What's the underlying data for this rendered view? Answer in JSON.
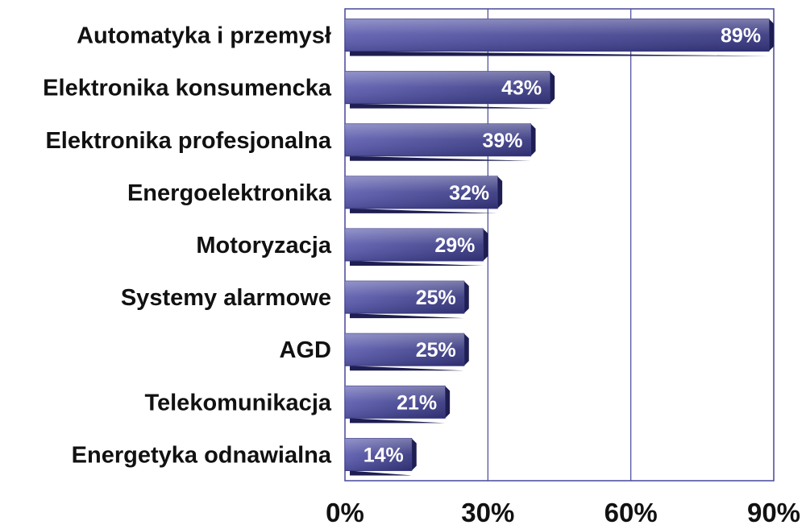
{
  "chart_data": {
    "type": "bar",
    "orientation": "horizontal",
    "categories": [
      "Automatyka i przemysł",
      "Elektronika konsumencka",
      "Elektronika profesjonalna",
      "Energoelektronika",
      "Motoryzacja",
      "Systemy alarmowe",
      "AGD",
      "Telekomunikacja",
      "Energetyka odnawialna"
    ],
    "values": [
      89,
      43,
      39,
      32,
      29,
      25,
      25,
      21,
      14
    ],
    "data_labels": [
      "89%",
      "43%",
      "39%",
      "32%",
      "29%",
      "25%",
      "25%",
      "21%",
      "14%"
    ],
    "title": "",
    "xlabel": "",
    "ylabel": "",
    "xlim": [
      0,
      90
    ],
    "x_ticks": [
      0,
      30,
      60,
      90
    ],
    "x_tick_labels": [
      "0%",
      "30%",
      "60%",
      "90%"
    ],
    "grid": "vertical",
    "legend": "none",
    "colors": {
      "bar_light": "#8e8ed2",
      "bar_dark": "#34347e",
      "bar_shadow": "#1e1e52",
      "grid": "#46469a"
    }
  }
}
